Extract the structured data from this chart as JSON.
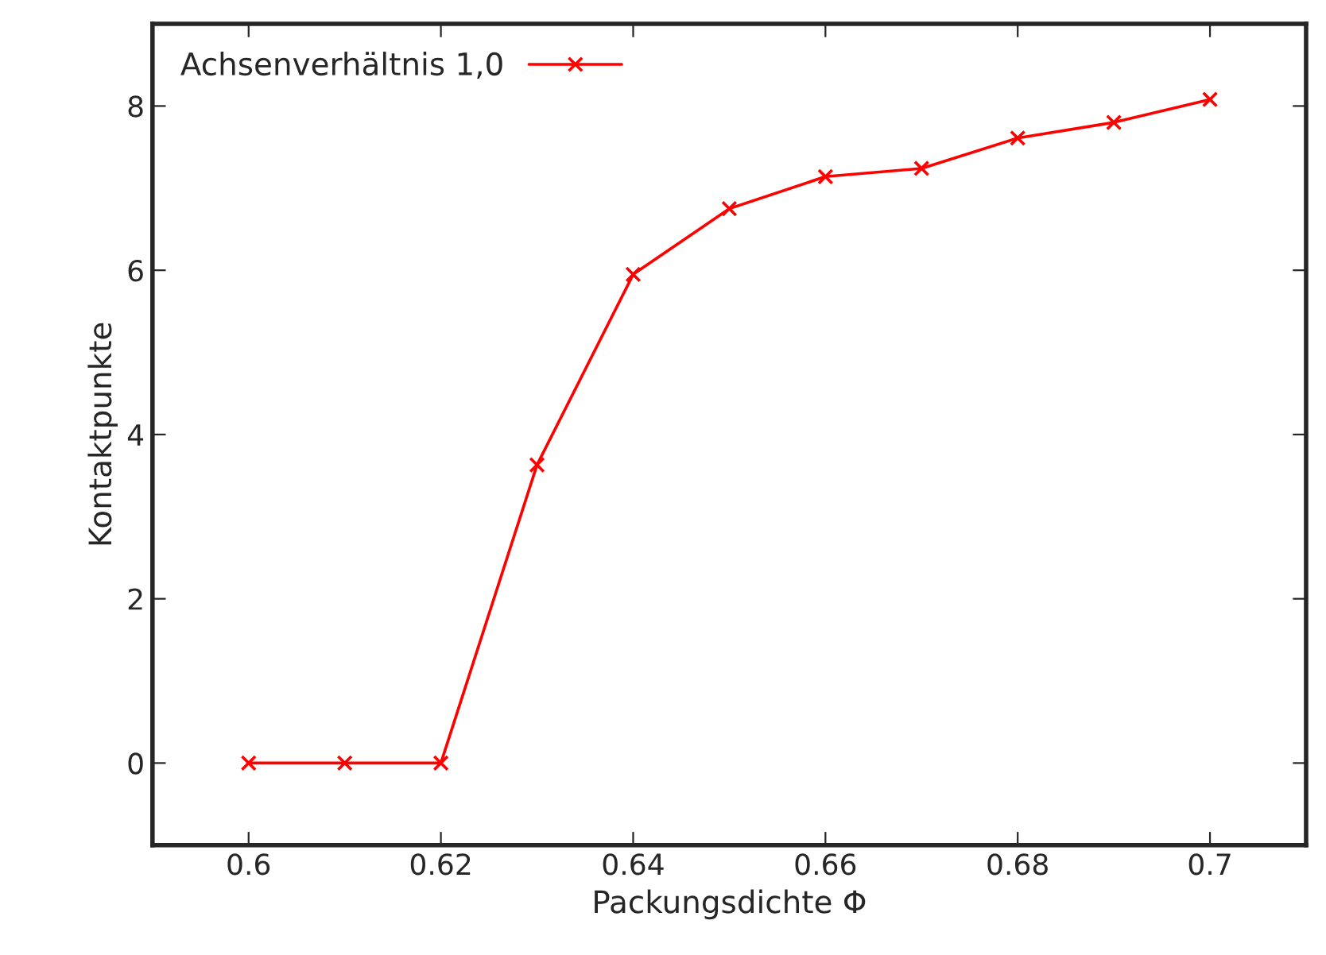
{
  "chart_data": {
    "type": "line",
    "xlabel": "Packungsdichte Φ",
    "ylabel": "Kontaktpunkte",
    "x": [
      0.6,
      0.61,
      0.62,
      0.63,
      0.64,
      0.65,
      0.66,
      0.67,
      0.68,
      0.69,
      0.7
    ],
    "series": [
      {
        "name": "Achsenverhältnis 1,0",
        "color": "#ff0000",
        "values": [
          0,
          0,
          0,
          3.63,
          5.95,
          6.75,
          7.14,
          7.24,
          7.61,
          7.8,
          8.08
        ]
      }
    ],
    "xlim": [
      0.59,
      0.71
    ],
    "ylim": [
      -1,
      9
    ],
    "xticks": [
      0.6,
      0.62,
      0.64,
      0.66,
      0.68,
      0.7
    ],
    "yticks": [
      0,
      2,
      4,
      6,
      8
    ],
    "marker": "cross",
    "line_style": "solid",
    "grid": false,
    "legend": "top left"
  }
}
